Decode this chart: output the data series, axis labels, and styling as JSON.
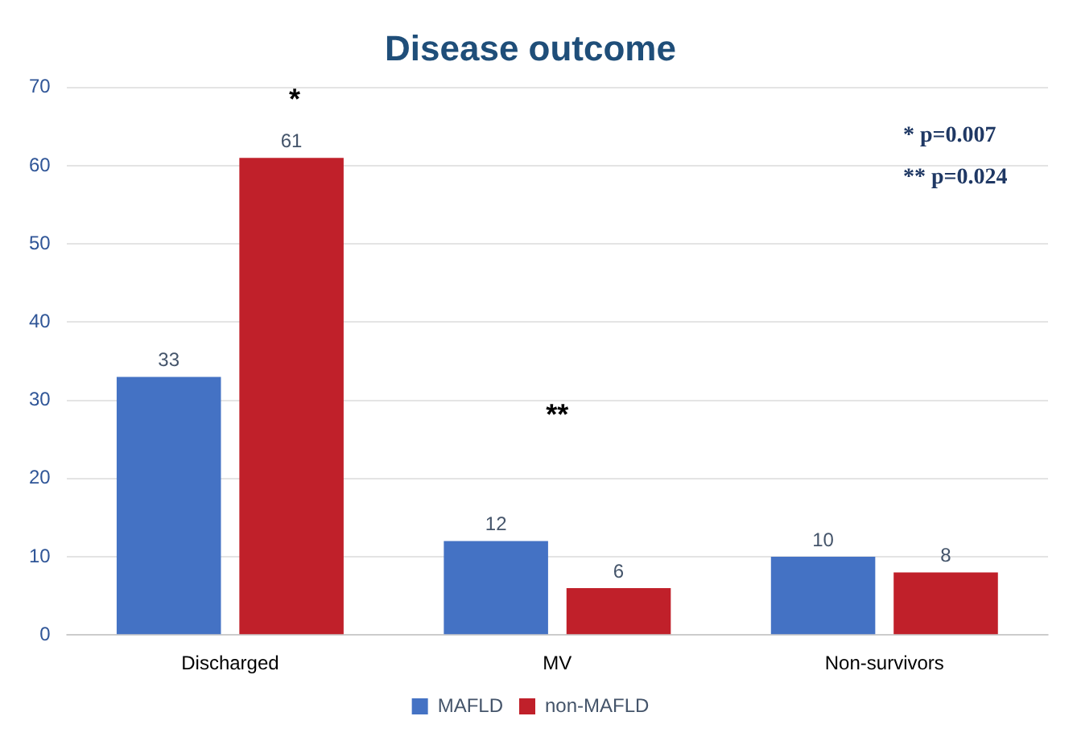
{
  "chart_data": {
    "type": "bar",
    "title": "Disease outcome",
    "categories": [
      "Discharged",
      "MV",
      "Non-survivors"
    ],
    "series": [
      {
        "name": "MAFLD",
        "color": "#4472c4",
        "values": [
          33,
          12,
          10
        ]
      },
      {
        "name": "non-MAFLD",
        "color": "#c0202a",
        "values": [
          61,
          6,
          8
        ]
      }
    ],
    "ylim": [
      0,
      70
    ],
    "yticks": [
      0,
      10,
      20,
      30,
      40,
      50,
      60,
      70
    ],
    "grid": "y",
    "legend": "bottom",
    "data_labels": true,
    "annotations": [
      "*",
      "**",
      "* p=0.007",
      "** p=0.024"
    ]
  }
}
